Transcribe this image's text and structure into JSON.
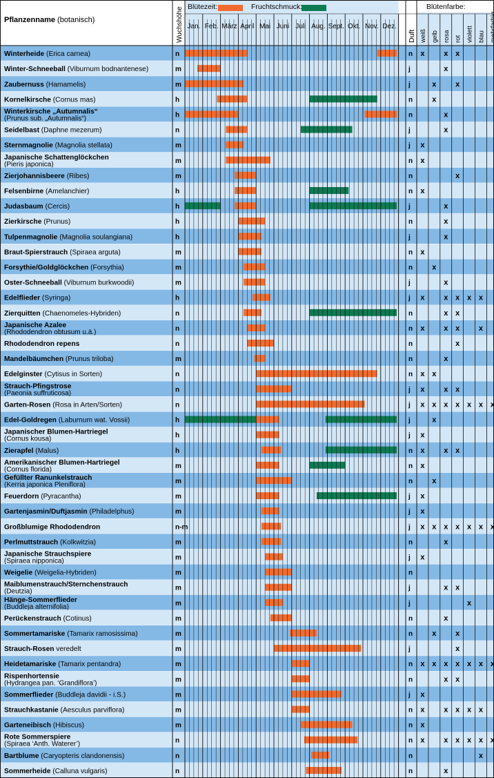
{
  "colors": {
    "bloom": "#F26B2E",
    "fruit": "#0E7B52",
    "row_dark": "#84B9E6",
    "row_light": "#D4E7F7",
    "header_bg": "#FFFFFF",
    "grid": "#111111"
  },
  "header": {
    "name_bold": "Pflanzenname",
    "name_rest": " (botanisch)",
    "height_label": "Wuchshöhe",
    "bloom_legend": "Blütezeit:",
    "fruit_legend": "Fruchtschmuck:",
    "scent_label": "Duft",
    "color_title": "Blütenfarbe:"
  },
  "months": [
    "Jan.",
    "Feb.",
    "März",
    "April",
    "Mai",
    "Juni",
    "Juli",
    "Aug.",
    "Sept.",
    "Okt.",
    "Nov.",
    "Dez."
  ],
  "color_labels": [
    "weiß",
    "gelb",
    "rosa",
    "rot",
    "violett",
    "blau",
    "mehrfarbig"
  ],
  "chart_data": {
    "type": "gantt",
    "x_unit": "month",
    "rows": [
      {
        "name": "Winterheide",
        "bot": "(Erica carnea)",
        "h": "n",
        "bloom": [
          [
            1,
            4.5
          ],
          [
            11.8,
            12.9
          ]
        ],
        "fruit": [],
        "d": "n",
        "c": [
          1,
          0,
          1,
          1,
          0,
          0,
          0
        ]
      },
      {
        "name": "Winter-Schneeball",
        "bot": "(Viburnum bodnantenese)",
        "h": "m",
        "bloom": [
          [
            1.7,
            3
          ]
        ],
        "fruit": [],
        "d": "j",
        "c": [
          0,
          0,
          1,
          0,
          0,
          0,
          0
        ]
      },
      {
        "name": "Zaubernuss",
        "bot": "(Hamamelis)",
        "h": "m",
        "bloom": [
          [
            1,
            4.3
          ]
        ],
        "fruit": [],
        "d": "j",
        "c": [
          0,
          1,
          0,
          1,
          0,
          0,
          0
        ]
      },
      {
        "name": "Kornelkirsche",
        "bot": "(Cornus mas)",
        "h": "h",
        "bloom": [
          [
            2.8,
            4.5
          ]
        ],
        "fruit": [
          [
            8,
            11.8
          ]
        ],
        "d": "n",
        "c": [
          0,
          1,
          0,
          0,
          0,
          0,
          0
        ]
      },
      {
        "name": "Winterkirsche „Autumnalis“",
        "bot": "(Prunus sub. „Autumnalis“)",
        "h": "h",
        "bloom": [
          [
            1,
            4
          ],
          [
            11.1,
            12.9
          ]
        ],
        "fruit": [],
        "d": "n",
        "c": [
          0,
          0,
          1,
          0,
          0,
          0,
          0
        ]
      },
      {
        "name": "Seidelbast",
        "bot": "(Daphne mezerum)",
        "h": "n",
        "bloom": [
          [
            3.3,
            4.5
          ]
        ],
        "fruit": [
          [
            7.5,
            10.4
          ]
        ],
        "d": "j",
        "c": [
          0,
          0,
          1,
          0,
          0,
          0,
          0
        ]
      },
      {
        "name": "Sternmagnolie",
        "bot": "(Magnolia stellata)",
        "h": "m",
        "bloom": [
          [
            3.3,
            4.3
          ]
        ],
        "fruit": [],
        "d": "j",
        "c": [
          1,
          0,
          0,
          0,
          0,
          0,
          0
        ]
      },
      {
        "name": "Japanische Schattenglöckchen",
        "bot": "(Pieris japonica)",
        "h": "m",
        "bloom": [
          [
            3.3,
            5.8
          ]
        ],
        "fruit": [],
        "d": "n",
        "c": [
          1,
          0,
          0,
          0,
          0,
          0,
          0
        ]
      },
      {
        "name": "Zierjohannisbeere",
        "bot": "(Ribes)",
        "h": "m",
        "bloom": [
          [
            3.8,
            5
          ]
        ],
        "fruit": [],
        "d": "n",
        "c": [
          0,
          0,
          0,
          1,
          0,
          0,
          0
        ]
      },
      {
        "name": "Felsenbirne",
        "bot": "(Amelanchier)",
        "h": "h",
        "bloom": [
          [
            3.8,
            5
          ]
        ],
        "fruit": [
          [
            8,
            10.2
          ]
        ],
        "d": "n",
        "c": [
          1,
          0,
          0,
          0,
          0,
          0,
          0
        ]
      },
      {
        "name": "Judasbaum",
        "bot": "(Cercis)",
        "h": "h",
        "bloom": [
          [
            3.8,
            5
          ]
        ],
        "fruit": [
          [
            1,
            3
          ],
          [
            8,
            12.9
          ]
        ],
        "d": "j",
        "c": [
          0,
          0,
          1,
          0,
          0,
          0,
          0
        ]
      },
      {
        "name": "Zierkirsche",
        "bot": "(Prunus)",
        "h": "h",
        "bloom": [
          [
            4,
            5.5
          ]
        ],
        "fruit": [],
        "d": "n",
        "c": [
          0,
          0,
          1,
          0,
          0,
          0,
          0
        ]
      },
      {
        "name": "Tulpenmagnolie",
        "bot": "(Magnolia soulangiana)",
        "h": "h",
        "bloom": [
          [
            4,
            5.3
          ]
        ],
        "fruit": [],
        "d": "j",
        "c": [
          0,
          0,
          1,
          0,
          0,
          0,
          0
        ]
      },
      {
        "name": "Braut-Spierstrauch",
        "bot": "(Spiraea arguta)",
        "h": "m",
        "bloom": [
          [
            4,
            5.3
          ]
        ],
        "fruit": [],
        "d": "n",
        "c": [
          1,
          0,
          0,
          0,
          0,
          0,
          0
        ]
      },
      {
        "name": "Forsythie/Goldglöckchen",
        "bot": "(Forsythia)",
        "h": "m",
        "bloom": [
          [
            4.3,
            5.5
          ]
        ],
        "fruit": [],
        "d": "n",
        "c": [
          0,
          1,
          0,
          0,
          0,
          0,
          0
        ]
      },
      {
        "name": "Oster-Schneeball",
        "bot": "(Viburnum burkwoodii)",
        "h": "m",
        "bloom": [
          [
            4.3,
            5.5
          ]
        ],
        "fruit": [],
        "d": "j",
        "c": [
          0,
          0,
          1,
          0,
          0,
          0,
          0
        ]
      },
      {
        "name": "Edelflieder",
        "bot": "(Syringa)",
        "h": "h",
        "bloom": [
          [
            4.8,
            5.8
          ]
        ],
        "fruit": [],
        "d": "j",
        "c": [
          1,
          0,
          1,
          1,
          1,
          1,
          0
        ]
      },
      {
        "name": "Zierquitten",
        "bot": "(Chaenomeles-Hybriden)",
        "h": "n",
        "bloom": [
          [
            4.3,
            5.3
          ]
        ],
        "fruit": [
          [
            8,
            12.9
          ]
        ],
        "d": "n",
        "c": [
          0,
          0,
          1,
          1,
          0,
          0,
          0
        ]
      },
      {
        "name": "Japanische Azalee",
        "bot": "(Rhododendron obtusum u.ä.)",
        "h": "n",
        "bloom": [
          [
            4.5,
            5.5
          ]
        ],
        "fruit": [],
        "d": "n",
        "c": [
          1,
          0,
          1,
          1,
          0,
          1,
          0
        ]
      },
      {
        "name": "Rhododendron repens",
        "bot": "",
        "h": "n",
        "bloom": [
          [
            4.5,
            6
          ]
        ],
        "fruit": [],
        "d": "n",
        "c": [
          0,
          0,
          0,
          1,
          0,
          0,
          0
        ]
      },
      {
        "name": "Mandelbäumchen",
        "bot": "(Prunus triloba)",
        "h": "m",
        "bloom": [
          [
            4.9,
            5.5
          ]
        ],
        "fruit": [],
        "d": "n",
        "c": [
          0,
          0,
          1,
          0,
          0,
          0,
          0
        ]
      },
      {
        "name": "Edelginster",
        "bot": "(Cytisus in Sorten)",
        "h": "n",
        "bloom": [
          [
            5,
            11.8
          ]
        ],
        "fruit": [],
        "d": "n",
        "c": [
          1,
          1,
          0,
          0,
          0,
          0,
          0
        ]
      },
      {
        "name": "Strauch-Pfingstrose",
        "bot": "(Paeonia suffruticosa)",
        "h": "n",
        "bloom": [
          [
            5,
            7
          ]
        ],
        "fruit": [],
        "d": "j",
        "c": [
          1,
          0,
          1,
          1,
          0,
          0,
          0
        ]
      },
      {
        "name": "Garten-Rosen",
        "bot": "(Rosa in Arten/Sorten)",
        "h": "n",
        "bloom": [
          [
            5,
            11.1
          ]
        ],
        "fruit": [],
        "d": "j",
        "c": [
          1,
          1,
          1,
          1,
          1,
          1,
          1
        ]
      },
      {
        "name": "Edel-Goldregen",
        "bot": "(Laburnum wat. Vossii)",
        "h": "h",
        "bloom": [
          [
            5,
            6.3
          ]
        ],
        "fruit": [
          [
            1,
            5
          ],
          [
            8.9,
            12.9
          ]
        ],
        "d": "j",
        "c": [
          0,
          1,
          0,
          0,
          0,
          0,
          0
        ]
      },
      {
        "name": "Japanischer Blumen-Hartriegel",
        "bot": "(Cornus kousa)",
        "h": "h",
        "bloom": [
          [
            5,
            6.3
          ]
        ],
        "fruit": [],
        "d": "j",
        "c": [
          1,
          0,
          0,
          0,
          0,
          0,
          0
        ]
      },
      {
        "name": "Zierapfel",
        "bot": "(Malus)",
        "h": "h",
        "bloom": [
          [
            5.3,
            6.4
          ]
        ],
        "fruit": [
          [
            8.9,
            12.9
          ]
        ],
        "d": "n",
        "c": [
          1,
          0,
          1,
          1,
          0,
          0,
          0
        ]
      },
      {
        "name": "Amerikanischer Blumen-Hartriegel",
        "bot": "(Cornus florida)",
        "h": "m",
        "bloom": [
          [
            5,
            6.3
          ]
        ],
        "fruit": [
          [
            8,
            10
          ]
        ],
        "d": "n",
        "c": [
          1,
          0,
          0,
          0,
          0,
          0,
          0
        ]
      },
      {
        "name": "Gefüllter Ranunkelstrauch",
        "bot": "(Kerria japonica Pleniflora)",
        "h": "m",
        "bloom": [
          [
            5,
            7
          ]
        ],
        "fruit": [],
        "d": "n",
        "c": [
          0,
          1,
          0,
          0,
          0,
          0,
          0
        ]
      },
      {
        "name": "Feuerdorn",
        "bot": "(Pyracantha)",
        "h": "m",
        "bloom": [
          [
            5,
            6.3
          ]
        ],
        "fruit": [
          [
            8.4,
            12.9
          ]
        ],
        "d": "j",
        "c": [
          1,
          0,
          0,
          0,
          0,
          0,
          0
        ]
      },
      {
        "name": "Gartenjasmin/Duftjasmin",
        "bot": "(Philadelphus)",
        "h": "m",
        "bloom": [
          [
            5.3,
            6.3
          ]
        ],
        "fruit": [],
        "d": "j",
        "c": [
          1,
          0,
          0,
          0,
          0,
          0,
          0
        ]
      },
      {
        "name": "Großblumige Rhododendron",
        "bot": "",
        "h": "n-m",
        "bloom": [
          [
            5.3,
            6.4
          ]
        ],
        "fruit": [],
        "d": "j",
        "c": [
          1,
          1,
          1,
          1,
          1,
          1,
          1
        ]
      },
      {
        "name": "Perlmuttstrauch",
        "bot": "(Kolkwitzia)",
        "h": "m",
        "bloom": [
          [
            5.3,
            6.4
          ]
        ],
        "fruit": [],
        "d": "n",
        "c": [
          0,
          0,
          1,
          0,
          0,
          0,
          0
        ]
      },
      {
        "name": "Japanische Strauchspiere",
        "bot": "(Spiraea nipponica)",
        "h": "m",
        "bloom": [
          [
            5.5,
            6.5
          ]
        ],
        "fruit": [],
        "d": "j",
        "c": [
          1,
          0,
          0,
          0,
          0,
          0,
          0
        ]
      },
      {
        "name": "Weigelie",
        "bot": "(Weigelia-Hybriden)",
        "h": "m",
        "bloom": [
          [
            5.5,
            7
          ]
        ],
        "fruit": [],
        "d": "n",
        "c": [
          0,
          0,
          0,
          0,
          0,
          0,
          0
        ]
      },
      {
        "name": "Maiblumenstrauch/Sternchenstrauch",
        "bot": "(Deutzia)",
        "h": "m",
        "bloom": [
          [
            5.5,
            7
          ]
        ],
        "fruit": [],
        "d": "j",
        "c": [
          0,
          0,
          1,
          1,
          0,
          0,
          0
        ]
      },
      {
        "name": "Hänge-Sommerflieder",
        "bot": "(Buddleja alternifolia)",
        "h": "m",
        "bloom": [
          [
            5.5,
            6.5
          ]
        ],
        "fruit": [],
        "d": "j",
        "c": [
          0,
          0,
          0,
          0,
          1,
          0,
          0
        ]
      },
      {
        "name": "Perückenstrauch",
        "bot": "(Cotinus)",
        "h": "m",
        "bloom": [
          [
            5.8,
            7
          ]
        ],
        "fruit": [],
        "d": "n",
        "c": [
          0,
          0,
          1,
          0,
          0,
          0,
          0
        ]
      },
      {
        "name": "Sommertamariske",
        "bot": "(Tamarix ramosissima)",
        "h": "m",
        "bloom": [
          [
            6.9,
            8.4
          ]
        ],
        "fruit": [],
        "d": "n",
        "c": [
          0,
          1,
          0,
          1,
          0,
          0,
          0
        ]
      },
      {
        "name": "Strauch-Rosen",
        "bot": "veredelt",
        "h": "m",
        "bloom": [
          [
            6,
            10.9
          ]
        ],
        "fruit": [],
        "d": "j",
        "c": [
          0,
          0,
          0,
          1,
          0,
          0,
          0
        ]
      },
      {
        "name": "Heidetamariske",
        "bot": "(Tamarix pentandra)",
        "h": "m",
        "bloom": [
          [
            7,
            8
          ]
        ],
        "fruit": [],
        "d": "n",
        "c": [
          1,
          1,
          1,
          1,
          1,
          1,
          1
        ]
      },
      {
        "name": "Rispenhortensie",
        "bot": "(Hydrangea pan. ‘Grandiflora’)",
        "h": "m",
        "bloom": [
          [
            7,
            8
          ]
        ],
        "fruit": [],
        "d": "n",
        "c": [
          0,
          0,
          1,
          1,
          0,
          0,
          0
        ]
      },
      {
        "name": "Sommerflieder",
        "bot": "(Buddleja davidii - i.S.)",
        "h": "m",
        "bloom": [
          [
            7,
            9.8
          ]
        ],
        "fruit": [],
        "d": "j",
        "c": [
          1,
          0,
          0,
          0,
          0,
          0,
          0
        ]
      },
      {
        "name": "Strauchkastanie",
        "bot": "(Aesculus parviflora)",
        "h": "m",
        "bloom": [
          [
            7,
            8
          ]
        ],
        "fruit": [],
        "d": "n",
        "c": [
          1,
          0,
          1,
          1,
          1,
          1,
          0
        ]
      },
      {
        "name": "Garteneibisch",
        "bot": "(Hibiscus)",
        "h": "m",
        "bloom": [
          [
            7.5,
            10.4
          ]
        ],
        "fruit": [],
        "d": "n",
        "c": [
          1,
          0,
          0,
          0,
          0,
          0,
          0
        ]
      },
      {
        "name": "Rote Sommerspiere",
        "bot": "(Spiraea ‘Anth. Waterer’)",
        "h": "n",
        "bloom": [
          [
            7.7,
            10.7
          ]
        ],
        "fruit": [],
        "d": "n",
        "c": [
          1,
          0,
          1,
          1,
          1,
          1,
          1
        ]
      },
      {
        "name": "Bartblume",
        "bot": "(Caryopteris clandonensis)",
        "h": "n",
        "bloom": [
          [
            8.1,
            9.1
          ]
        ],
        "fruit": [],
        "d": "n",
        "c": [
          0,
          0,
          0,
          0,
          0,
          1,
          0
        ]
      },
      {
        "name": "Sommerheide",
        "bot": "(Calluna vulgaris)",
        "h": "n",
        "bloom": [
          [
            7.8,
            9.8
          ]
        ],
        "fruit": [],
        "d": "n",
        "c": [
          0,
          0,
          1,
          0,
          0,
          0,
          0
        ]
      }
    ]
  }
}
